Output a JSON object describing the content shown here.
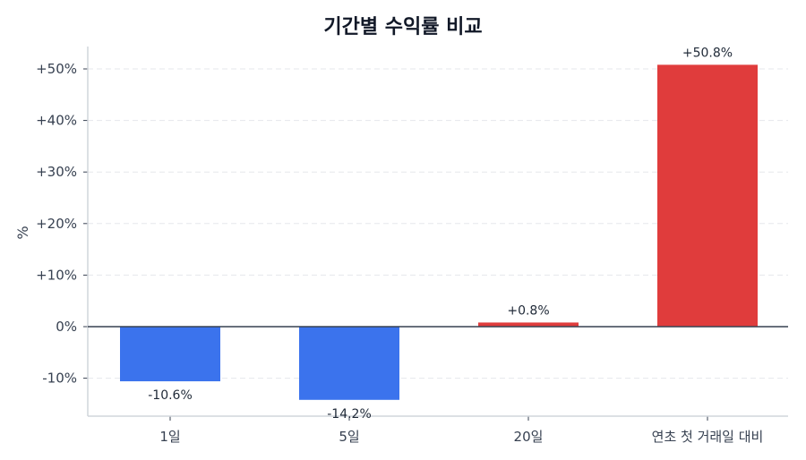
{
  "chart_data": {
    "type": "bar",
    "title": "기간별 수익률 비교",
    "xlabel": "",
    "ylabel": "%",
    "categories": [
      "1일",
      "5일",
      "20일",
      "연초 첫 거래일 대비"
    ],
    "values": [
      -10.6,
      -14.2,
      0.8,
      50.8
    ],
    "value_labels": [
      "-10.6%",
      "-14.2%",
      "+0.8%",
      "+50.8%"
    ],
    "bar_colors": [
      "#3b73ed",
      "#3b73ed",
      "#e03c3c",
      "#e03c3c"
    ],
    "ylim": [
      -17.4,
      54.3
    ],
    "yticks": [
      -10,
      0,
      10,
      20,
      30,
      40,
      50
    ],
    "ytick_labels": [
      "-10%",
      "0%",
      "+10%",
      "+20%",
      "+30%",
      "+40%",
      "+50%"
    ],
    "grid": {
      "y": true,
      "style": "dashed",
      "color": "#e5e7eb"
    },
    "zero_line": true,
    "legend": null
  },
  "colors": {
    "negative": "#3b73ed",
    "positive": "#e03c3c",
    "axis": "#d1d5db",
    "zero_line": "#374151",
    "text": "#1f2937"
  }
}
